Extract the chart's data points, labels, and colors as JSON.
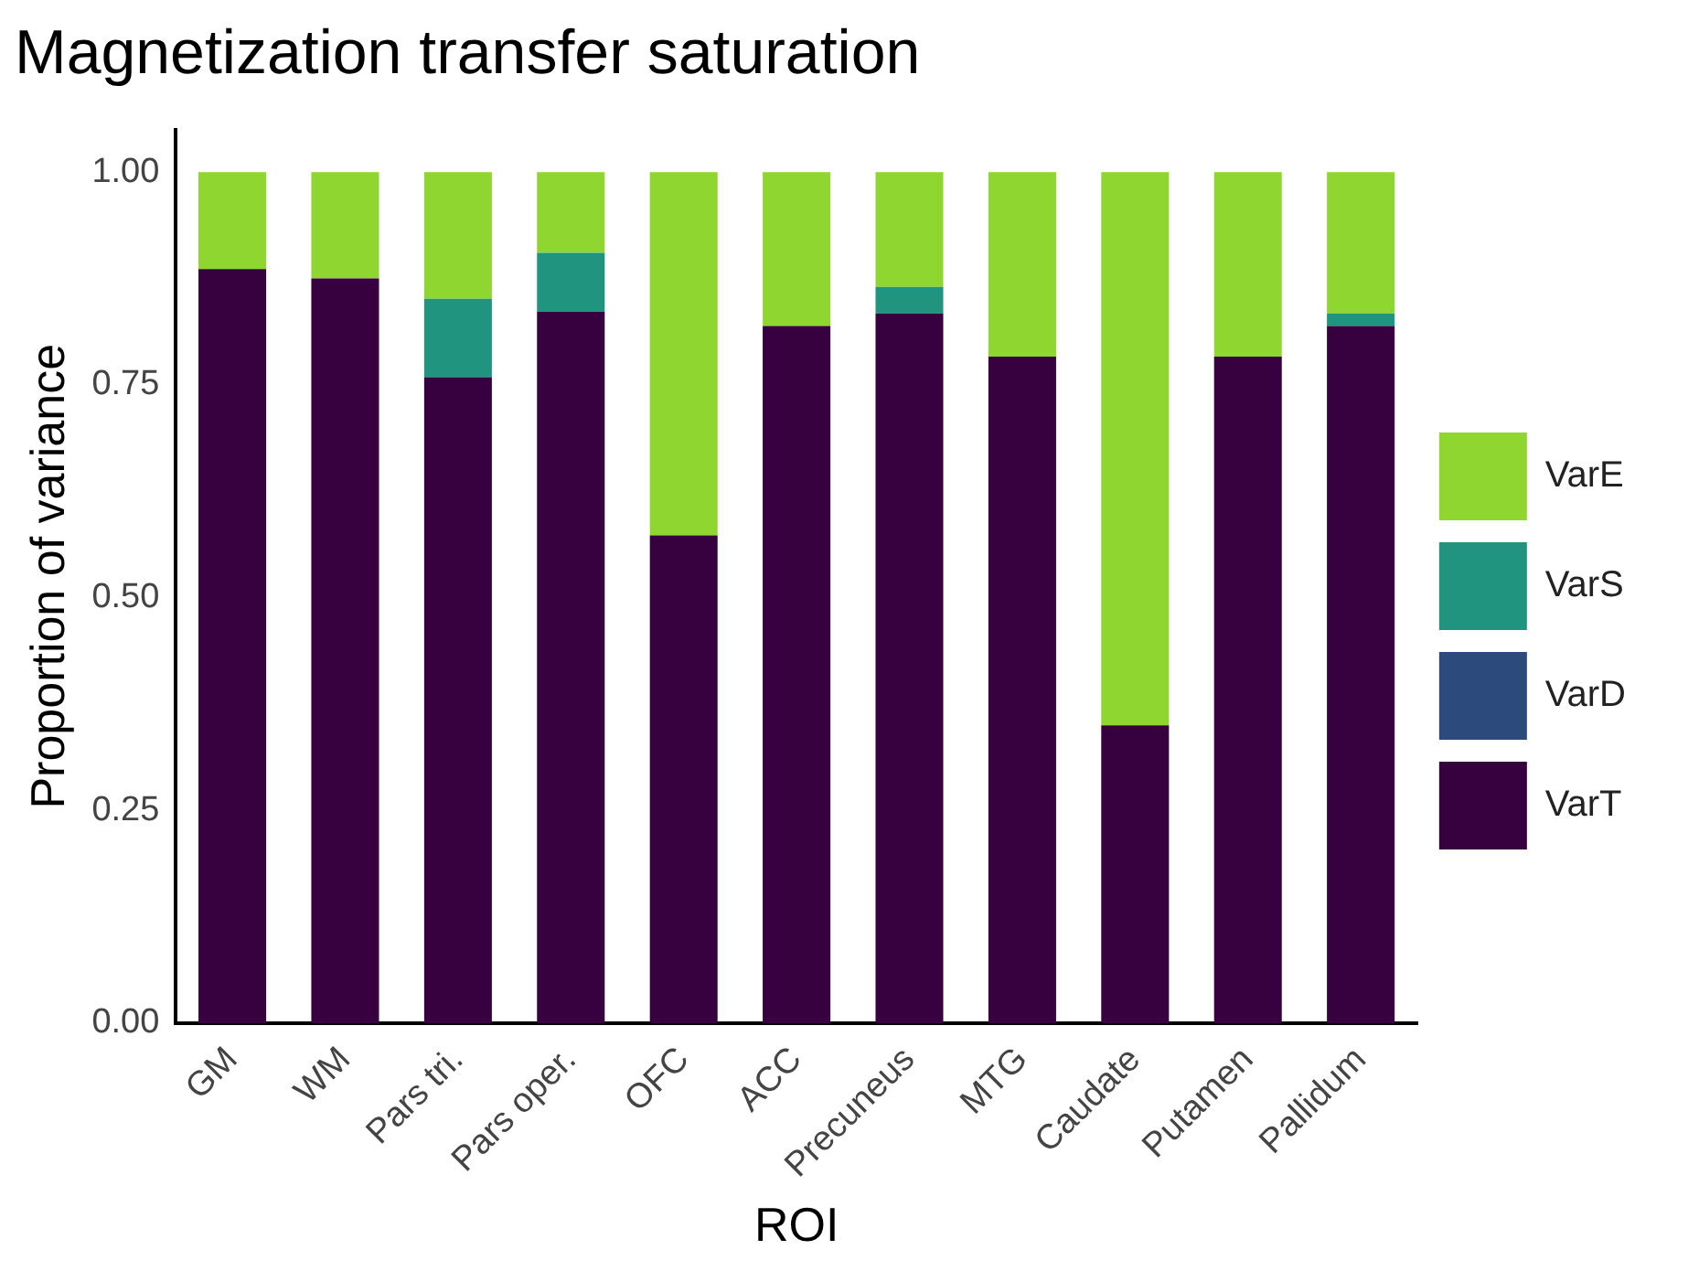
{
  "chart_data": {
    "type": "bar",
    "title": "Magnetization transfer saturation",
    "xlabel": "ROI",
    "ylabel": "Proportion of variance",
    "categories": [
      "GM",
      "WM",
      "Pars tri.",
      "Pars oper.",
      "OFC",
      "ACC",
      "Precuneus",
      "MTG",
      "Caudate",
      "Putamen",
      "Pallidum"
    ],
    "stacked": true,
    "series": [
      {
        "name": "VarT",
        "color": "#37003f",
        "values": [
          0.886,
          0.875,
          0.759,
          0.836,
          0.573,
          0.819,
          0.834,
          0.783,
          0.35,
          0.783,
          0.819
        ]
      },
      {
        "name": "VarD",
        "color": "#2c4a7c",
        "values": [
          0,
          0,
          0,
          0,
          0,
          0,
          0,
          0,
          0,
          0,
          0
        ]
      },
      {
        "name": "VarS",
        "color": "#21947f",
        "values": [
          0,
          0,
          0.092,
          0.069,
          0,
          0,
          0.031,
          0,
          0,
          0,
          0.015
        ]
      },
      {
        "name": "VarE",
        "color": "#8fd631",
        "values": [
          0.114,
          0.125,
          0.149,
          0.095,
          0.427,
          0.181,
          0.135,
          0.217,
          0.65,
          0.217,
          0.166
        ]
      }
    ],
    "ylim": [
      0,
      1.05
    ],
    "yticks": [
      {
        "value": 0,
        "label": "0.00"
      },
      {
        "value": 0.25,
        "label": "0.25"
      },
      {
        "value": 0.5,
        "label": "0.50"
      },
      {
        "value": 0.75,
        "label": "0.75"
      },
      {
        "value": 1,
        "label": "1.00"
      }
    ],
    "grid": false,
    "legend": "right"
  }
}
